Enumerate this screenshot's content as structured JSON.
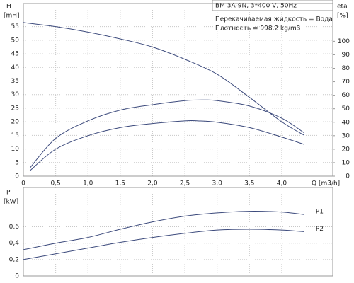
{
  "chart_data": [
    {
      "type": "line",
      "title": "BM 3A-9N, 3*400 V, 50Hz",
      "annotations": [
        "Перекачиваемая жидкость = Вода",
        "Плотность = 998.2 kg/m3"
      ],
      "ylabel": "H",
      "yunit": "[mH]",
      "y2label": "eta",
      "y2unit": "[%]",
      "xlabel": "Q [m3/h]",
      "xlim": [
        0,
        4.79
      ],
      "ylim": [
        0,
        63.5
      ],
      "y2lim": [
        0,
        128
      ],
      "xticks": [
        0,
        {
          "value": 0.5,
          "label": "0,5"
        },
        {
          "value": 1,
          "label": "1,0"
        },
        {
          "value": 1.5,
          "label": "1,5"
        },
        {
          "value": 2,
          "label": "2,0"
        },
        {
          "value": 2.5,
          "label": "2,5"
        },
        {
          "value": 3,
          "label": "3,0"
        },
        {
          "value": 3.5,
          "label": "3,5"
        },
        {
          "value": 4,
          "label": "4,0"
        }
      ],
      "yticks": [
        0,
        5,
        10,
        15,
        20,
        25,
        30,
        35,
        40,
        45,
        50,
        55
      ],
      "y2ticks": [
        0,
        10,
        20,
        30,
        40,
        50,
        60,
        70,
        80,
        90,
        100
      ],
      "grid": true,
      "series": [
        {
          "color": "#3c4a7c",
          "x": [
            0,
            0.5,
            1,
            1.5,
            2,
            2.5,
            3,
            3.5,
            4,
            4.35
          ],
          "values": [
            56.5,
            55,
            53,
            50.5,
            47.5,
            43,
            37.5,
            29,
            20,
            15
          ]
        },
        {
          "color": "#3c4a7c",
          "axis": "y2",
          "x": [
            0.1,
            0.5,
            1,
            1.5,
            2,
            2.5,
            2.8,
            3,
            3.5,
            4,
            4.35
          ],
          "values": [
            6,
            28,
            41,
            49,
            53,
            56,
            56.5,
            56,
            52,
            43,
            32
          ]
        },
        {
          "color": "#3c4a7c",
          "axis": "y2",
          "x": [
            0.1,
            0.5,
            1,
            1.5,
            2,
            2.5,
            2.7,
            3,
            3.5,
            4,
            4.35
          ],
          "values": [
            4,
            20,
            30,
            36,
            39,
            41,
            41,
            40,
            36,
            29,
            23.5
          ]
        }
      ]
    },
    {
      "type": "line",
      "ylabel": "P",
      "yunit": "[kW]",
      "xlim": [
        0,
        4.79
      ],
      "ylim": [
        0,
        1.08
      ],
      "yticks": [
        0,
        {
          "value": 0.2,
          "label": "0,2"
        },
        {
          "value": 0.4,
          "label": "0,4"
        },
        {
          "value": 0.6,
          "label": "0,6"
        }
      ],
      "grid": true,
      "series": [
        {
          "name": "P1",
          "color": "#3c4a7c",
          "x": [
            0,
            0.5,
            1,
            1.5,
            2,
            2.5,
            3,
            3.5,
            4,
            4.35
          ],
          "values": [
            0.32,
            0.4,
            0.47,
            0.57,
            0.66,
            0.73,
            0.77,
            0.79,
            0.78,
            0.75
          ]
        },
        {
          "name": "P2",
          "color": "#3c4a7c",
          "x": [
            0,
            0.5,
            1,
            1.5,
            2,
            2.5,
            3,
            3.5,
            4,
            4.35
          ],
          "values": [
            0.2,
            0.27,
            0.34,
            0.41,
            0.47,
            0.52,
            0.56,
            0.57,
            0.56,
            0.54
          ]
        }
      ]
    }
  ]
}
